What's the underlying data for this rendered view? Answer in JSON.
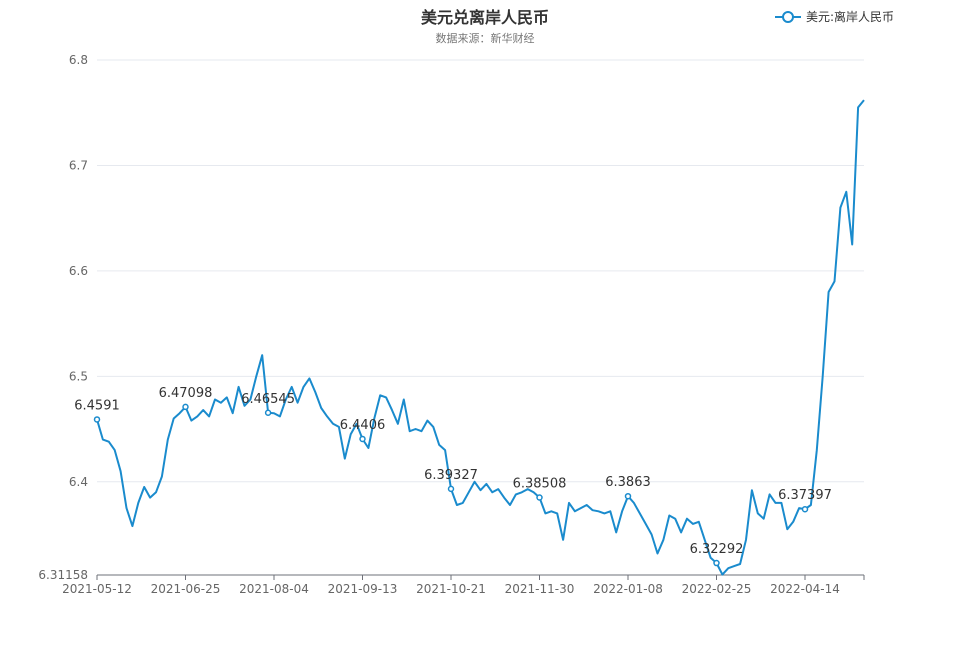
{
  "chart_data": {
    "type": "line",
    "title": "美元兑离岸人民币",
    "subtitle": "数据来源：新华财经",
    "legend": {
      "position": "top-right",
      "entries": [
        "美元:离岸人民币"
      ]
    },
    "series": [
      {
        "name": "美元:离岸人民币",
        "color": "#1a8bcd",
        "values": [
          6.4591,
          6.44,
          6.438,
          6.43,
          6.41,
          6.375,
          6.358,
          6.38,
          6.395,
          6.385,
          6.39,
          6.405,
          6.44,
          6.46,
          6.465,
          6.47098,
          6.458,
          6.462,
          6.468,
          6.462,
          6.478,
          6.475,
          6.48,
          6.465,
          6.49,
          6.472,
          6.478,
          6.5,
          6.52,
          6.46545,
          6.465,
          6.462,
          6.478,
          6.49,
          6.475,
          6.49,
          6.498,
          6.485,
          6.47,
          6.462,
          6.455,
          6.452,
          6.422,
          6.445,
          6.455,
          6.4406,
          6.432,
          6.46,
          6.482,
          6.48,
          6.468,
          6.455,
          6.478,
          6.448,
          6.45,
          6.448,
          6.458,
          6.452,
          6.435,
          6.43,
          6.39327,
          6.378,
          6.38,
          6.39,
          6.4,
          6.392,
          6.398,
          6.39,
          6.393,
          6.385,
          6.378,
          6.388,
          6.39,
          6.393,
          6.39,
          6.38508,
          6.37,
          6.372,
          6.37,
          6.345,
          6.38,
          6.372,
          6.375,
          6.378,
          6.373,
          6.372,
          6.37,
          6.372,
          6.352,
          6.372,
          6.3863,
          6.38,
          6.37,
          6.36,
          6.35,
          6.332,
          6.345,
          6.368,
          6.365,
          6.352,
          6.365,
          6.36,
          6.362,
          6.345,
          6.328,
          6.32292,
          6.312,
          6.318,
          6.32,
          6.322,
          6.345,
          6.392,
          6.37,
          6.365,
          6.388,
          6.38,
          6.38,
          6.355,
          6.362,
          6.375,
          6.37397,
          6.378,
          6.43,
          6.5,
          6.58,
          6.59,
          6.66,
          6.675,
          6.625,
          6.755,
          6.762
        ],
        "labeled_points": [
          {
            "index": 0,
            "label": "6.4591"
          },
          {
            "index": 15,
            "label": "6.47098"
          },
          {
            "index": 29,
            "label": "6.46545"
          },
          {
            "index": 45,
            "label": "6.4406"
          },
          {
            "index": 60,
            "label": "6.39327"
          },
          {
            "index": 75,
            "label": "6.38508"
          },
          {
            "index": 90,
            "label": "6.3863"
          },
          {
            "index": 105,
            "label": "6.32292"
          },
          {
            "index": 120,
            "label": "6.37397"
          }
        ]
      }
    ],
    "x_ticks": [
      {
        "index": 0,
        "label": "2021-05-12"
      },
      {
        "index": 15,
        "label": "2021-06-25"
      },
      {
        "index": 30,
        "label": "2021-08-04"
      },
      {
        "index": 45,
        "label": "2021-09-13"
      },
      {
        "index": 60,
        "label": "2021-10-21"
      },
      {
        "index": 75,
        "label": "2021-11-30"
      },
      {
        "index": 90,
        "label": "2022-01-08"
      },
      {
        "index": 105,
        "label": "2022-02-25"
      },
      {
        "index": 120,
        "label": "2022-04-14"
      }
    ],
    "y_ticks": [
      "6.31158",
      "6.4",
      "6.5",
      "6.6",
      "6.7",
      "6.8"
    ],
    "ylim": [
      6.31158,
      6.8
    ],
    "grid": true
  }
}
